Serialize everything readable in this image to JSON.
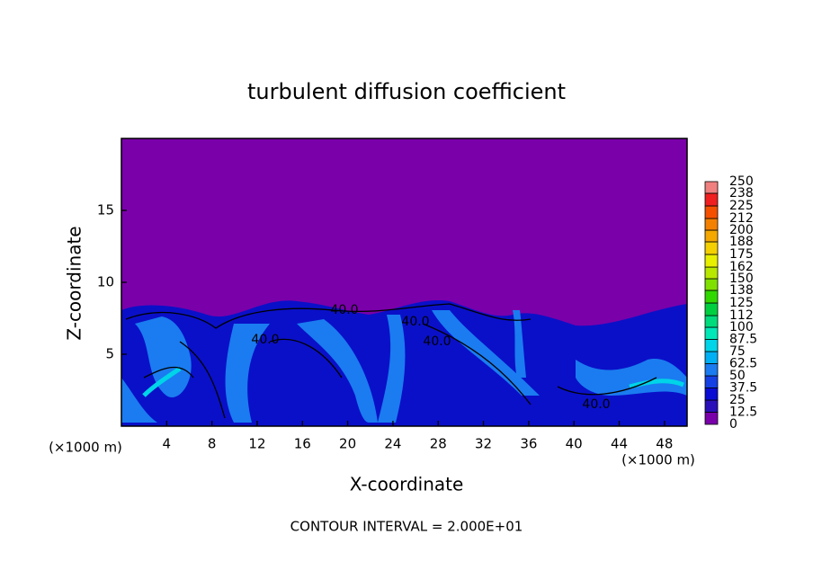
{
  "chart_data": {
    "type": "contour",
    "title": "turbulent diffusion coefficient",
    "x_label": "X-coordinate",
    "y_label": "Z-coordinate",
    "x_unit": "(×1000 m)",
    "y_unit": "(×1000 m)",
    "footer": "CONTOUR INTERVAL = 2.000E+01",
    "xlim": [
      0,
      50
    ],
    "xticks": [
      4,
      8,
      12,
      16,
      20,
      24,
      28,
      32,
      36,
      40,
      44,
      48
    ],
    "ylim": [
      0,
      20
    ],
    "yticks": [
      5,
      10,
      15
    ],
    "contour_labels": [
      "40.0",
      "40.0",
      "40.0",
      "40.0",
      "40.0"
    ],
    "colorbar": {
      "levels": [
        0,
        12.5,
        25,
        37.5,
        50,
        62.5,
        75,
        87.5,
        100,
        112,
        125,
        138,
        150,
        162,
        175,
        188,
        200,
        212,
        225,
        238,
        250
      ],
      "colors": [
        "#7a00aa",
        "#2a10b8",
        "#0a0cd4",
        "#1440e4",
        "#1a7cf0",
        "#00b0f4",
        "#00d4e8",
        "#00e8b8",
        "#00dc7c",
        "#00d040",
        "#30d800",
        "#80e000",
        "#b8e800",
        "#e8f000",
        "#f4d000",
        "#f4a800",
        "#f48000",
        "#f45000",
        "#f02020",
        "#f08080"
      ]
    }
  }
}
